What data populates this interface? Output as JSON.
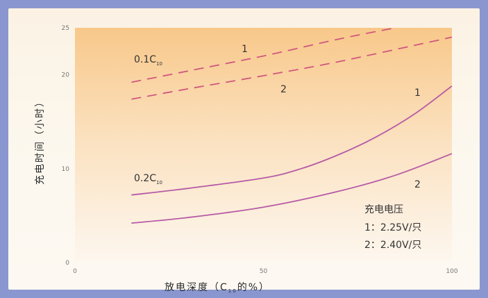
{
  "chart_data": {
    "type": "line",
    "xlabel": {
      "main": "放电深度（C",
      "sub": "10",
      "tail": "的%）"
    },
    "ylabel": "充电时间（小时）",
    "xlim": [
      0,
      100
    ],
    "ylim": [
      0,
      25
    ],
    "x_ticks": [
      0,
      50,
      100
    ],
    "y_ticks": [
      0,
      10,
      20,
      25
    ],
    "grid": false,
    "series": [
      {
        "group": "0.1C10",
        "label": "1",
        "style": "dashed",
        "color": "#d0577f",
        "x": [
          15,
          30,
          50,
          70,
          85
        ],
        "y": [
          19.2,
          20.4,
          22.0,
          23.8,
          25.0
        ]
      },
      {
        "group": "0.1C10",
        "label": "2",
        "style": "dashed",
        "color": "#d0577f",
        "x": [
          15,
          30,
          50,
          70,
          100
        ],
        "y": [
          17.4,
          18.5,
          19.9,
          21.4,
          24.0
        ]
      },
      {
        "group": "0.2C10",
        "label": "1",
        "style": "solid",
        "color": "#b65aa6",
        "x": [
          15,
          30,
          50,
          60,
          70,
          80,
          90,
          100
        ],
        "y": [
          7.2,
          7.9,
          9.0,
          10.0,
          11.5,
          13.4,
          15.8,
          18.8
        ]
      },
      {
        "group": "0.2C10",
        "label": "2",
        "style": "solid",
        "color": "#b65aa6",
        "x": [
          15,
          30,
          50,
          70,
          85,
          100
        ],
        "y": [
          4.2,
          4.8,
          5.9,
          7.6,
          9.3,
          11.6
        ]
      }
    ],
    "annotations": [
      {
        "text": "0.1C",
        "sub": "10"
      },
      {
        "text": "0.2C",
        "sub": "10"
      }
    ],
    "curve_labels": [
      "1",
      "2",
      "1",
      "2"
    ],
    "legend": {
      "title": "充电电压",
      "items": [
        "1：2.25V/只",
        "2：2.40V/只"
      ],
      "position": "bottom-right"
    }
  }
}
